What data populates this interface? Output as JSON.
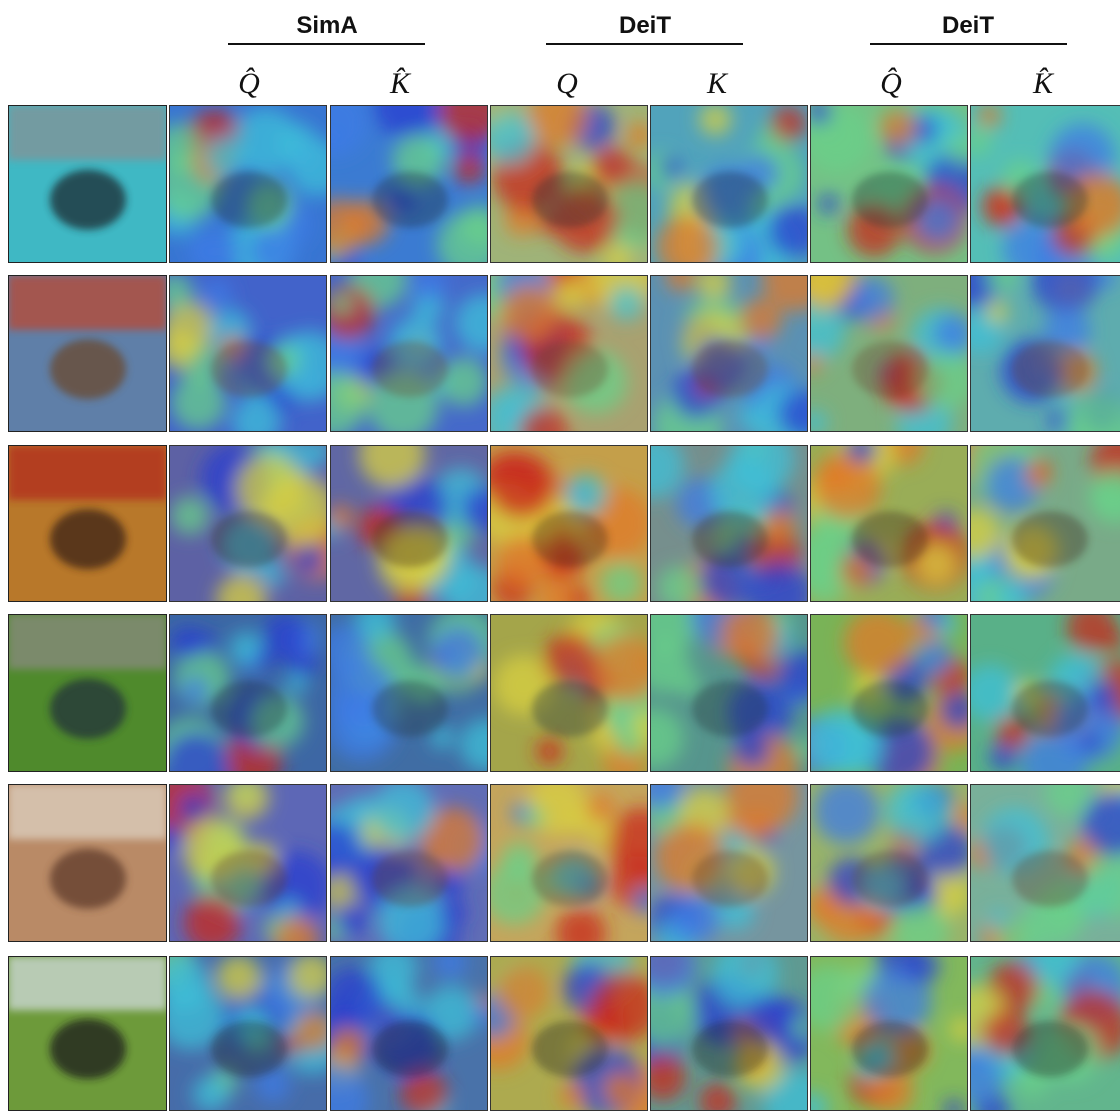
{
  "figure": {
    "groups": [
      {
        "title": "SimA",
        "columns": [
          "Q̂",
          "K̂"
        ]
      },
      {
        "title": "DeiT",
        "columns": [
          "Q",
          "K"
        ]
      },
      {
        "title": "DeiT",
        "columns": [
          "Q̂",
          "K̂"
        ]
      }
    ]
  }
}
